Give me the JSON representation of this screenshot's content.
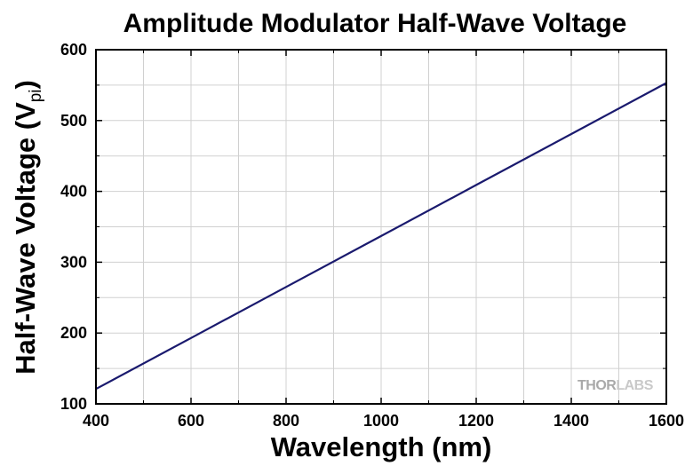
{
  "chart_data": {
    "type": "line",
    "title": "Amplitude Modulator Half-Wave Voltage",
    "xlabel": "Wavelength (nm)",
    "ylabel": "Half-Wave Voltage (V",
    "ylabel_sub": "pi",
    "ylabel_close": ")",
    "xlim": [
      400,
      1600
    ],
    "ylim": [
      100,
      600
    ],
    "xticks": [
      400,
      600,
      800,
      1000,
      1200,
      1400,
      1600
    ],
    "yticks": [
      100,
      200,
      300,
      400,
      500,
      600
    ],
    "grid": true,
    "line_color": "#1a1a6e",
    "series": [
      {
        "x": [
          400,
          600,
          800,
          1000,
          1200,
          1400,
          1600
        ],
        "y": [
          121,
          193,
          265,
          337,
          409,
          481,
          553
        ]
      }
    ]
  },
  "watermark": {
    "thor": "THOR",
    "labs": "LABS"
  }
}
